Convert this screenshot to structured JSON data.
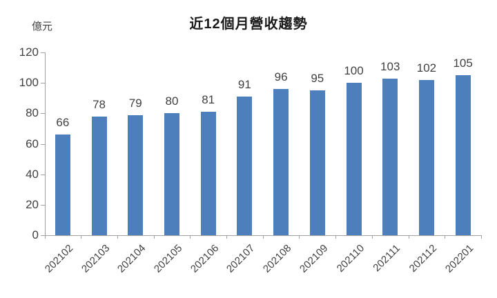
{
  "chart_data": {
    "type": "bar",
    "title": "近12個月營收趨勢",
    "unit_label": "億元",
    "xlabel": "",
    "ylabel": "億元",
    "categories": [
      "202102",
      "202103",
      "202104",
      "202105",
      "202106",
      "202107",
      "202108",
      "202109",
      "202110",
      "202111",
      "202112",
      "202201"
    ],
    "values": [
      66,
      78,
      79,
      80,
      81,
      91,
      96,
      95,
      100,
      103,
      102,
      105
    ],
    "yticks": [
      0,
      20,
      40,
      60,
      80,
      100,
      120
    ],
    "ylim": [
      0,
      120
    ],
    "grid": false,
    "legend_position": "none",
    "data_labels_shown": true,
    "x_label_rotation_deg": -45,
    "colors": {
      "bar": "#4e7fbd",
      "text": "#404040",
      "title": "#1a1a1a",
      "axis": "#a0a0a0",
      "background": "#ffffff"
    }
  }
}
